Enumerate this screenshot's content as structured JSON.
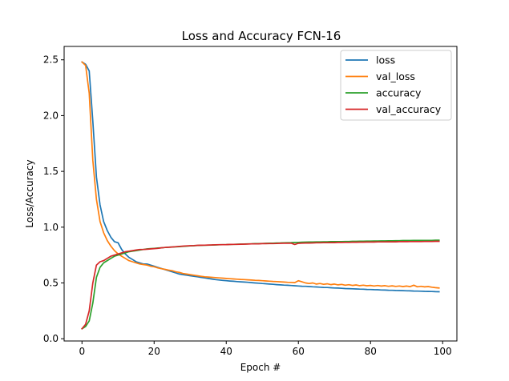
{
  "chart_data": {
    "type": "line",
    "title": "Loss and Accuracy FCN-16",
    "xlabel": "Epoch #",
    "ylabel": "Loss/Accuracy",
    "xlim": [
      -4.95,
      103.95
    ],
    "ylim": [
      -0.02,
      2.62
    ],
    "xticks": [
      0,
      20,
      40,
      60,
      80,
      100
    ],
    "yticks": [
      0.0,
      0.5,
      1.0,
      1.5,
      2.0,
      2.5
    ],
    "xtick_labels": [
      "0",
      "20",
      "40",
      "60",
      "80",
      "100"
    ],
    "ytick_labels": [
      "0.0",
      "0.5",
      "1.0",
      "1.5",
      "2.0",
      "2.5"
    ],
    "grid": false,
    "legend_position": "top-right",
    "x": {
      "start": 0,
      "end": 99,
      "step": 1
    },
    "series": [
      {
        "name": "loss",
        "color": "#1f77b4",
        "values": [
          2.48,
          2.46,
          2.4,
          1.95,
          1.45,
          1.2,
          1.05,
          0.97,
          0.91,
          0.87,
          0.86,
          0.8,
          0.76,
          0.73,
          0.71,
          0.69,
          0.68,
          0.67,
          0.67,
          0.66,
          0.65,
          0.64,
          0.63,
          0.62,
          0.61,
          0.6,
          0.59,
          0.58,
          0.575,
          0.57,
          0.565,
          0.56,
          0.555,
          0.55,
          0.545,
          0.54,
          0.535,
          0.53,
          0.527,
          0.523,
          0.52,
          0.517,
          0.515,
          0.512,
          0.51,
          0.508,
          0.506,
          0.503,
          0.5,
          0.498,
          0.495,
          0.493,
          0.49,
          0.488,
          0.485,
          0.483,
          0.481,
          0.479,
          0.477,
          0.475,
          0.473,
          0.471,
          0.47,
          0.468,
          0.466,
          0.464,
          0.462,
          0.46,
          0.459,
          0.457,
          0.455,
          0.454,
          0.452,
          0.45,
          0.449,
          0.448,
          0.446,
          0.445,
          0.444,
          0.442,
          0.441,
          0.44,
          0.439,
          0.437,
          0.436,
          0.435,
          0.434,
          0.433,
          0.432,
          0.431,
          0.43,
          0.429,
          0.428,
          0.427,
          0.426,
          0.425,
          0.424,
          0.423,
          0.422,
          0.421
        ]
      },
      {
        "name": "val_loss",
        "color": "#ff7f0e",
        "values": [
          2.48,
          2.45,
          2.2,
          1.6,
          1.25,
          1.05,
          0.95,
          0.88,
          0.83,
          0.79,
          0.76,
          0.74,
          0.72,
          0.7,
          0.69,
          0.68,
          0.67,
          0.665,
          0.66,
          0.65,
          0.645,
          0.635,
          0.628,
          0.622,
          0.615,
          0.61,
          0.6,
          0.595,
          0.585,
          0.58,
          0.575,
          0.57,
          0.565,
          0.56,
          0.555,
          0.553,
          0.55,
          0.548,
          0.545,
          0.543,
          0.54,
          0.538,
          0.536,
          0.534,
          0.532,
          0.53,
          0.528,
          0.526,
          0.524,
          0.522,
          0.52,
          0.518,
          0.516,
          0.514,
          0.512,
          0.51,
          0.508,
          0.506,
          0.505,
          0.503,
          0.52,
          0.51,
          0.5,
          0.495,
          0.5,
          0.49,
          0.495,
          0.488,
          0.492,
          0.485,
          0.49,
          0.483,
          0.487,
          0.48,
          0.484,
          0.478,
          0.482,
          0.476,
          0.48,
          0.475,
          0.478,
          0.473,
          0.477,
          0.472,
          0.476,
          0.47,
          0.474,
          0.469,
          0.473,
          0.468,
          0.472,
          0.467,
          0.48,
          0.466,
          0.47,
          0.465,
          0.468,
          0.462,
          0.458,
          0.455
        ]
      },
      {
        "name": "accuracy",
        "color": "#2ca02c",
        "values": [
          0.09,
          0.11,
          0.16,
          0.32,
          0.55,
          0.64,
          0.68,
          0.7,
          0.72,
          0.74,
          0.75,
          0.76,
          0.77,
          0.78,
          0.785,
          0.79,
          0.795,
          0.8,
          0.805,
          0.808,
          0.81,
          0.813,
          0.815,
          0.818,
          0.82,
          0.822,
          0.824,
          0.826,
          0.828,
          0.83,
          0.832,
          0.834,
          0.836,
          0.837,
          0.838,
          0.839,
          0.84,
          0.841,
          0.842,
          0.843,
          0.844,
          0.845,
          0.846,
          0.847,
          0.848,
          0.849,
          0.85,
          0.851,
          0.852,
          0.853,
          0.854,
          0.855,
          0.856,
          0.857,
          0.858,
          0.859,
          0.86,
          0.861,
          0.862,
          0.863,
          0.864,
          0.865,
          0.866,
          0.867,
          0.867,
          0.868,
          0.868,
          0.869,
          0.869,
          0.87,
          0.87,
          0.871,
          0.871,
          0.872,
          0.872,
          0.873,
          0.873,
          0.874,
          0.874,
          0.875,
          0.875,
          0.876,
          0.876,
          0.877,
          0.877,
          0.878,
          0.878,
          0.879,
          0.879,
          0.88,
          0.88,
          0.88,
          0.881,
          0.881,
          0.881,
          0.882,
          0.882,
          0.882,
          0.883,
          0.883
        ]
      },
      {
        "name": "val_accuracy",
        "color": "#d62728",
        "values": [
          0.09,
          0.13,
          0.25,
          0.5,
          0.66,
          0.69,
          0.7,
          0.72,
          0.74,
          0.75,
          0.76,
          0.77,
          0.78,
          0.785,
          0.79,
          0.795,
          0.8,
          0.8,
          0.802,
          0.805,
          0.808,
          0.81,
          0.815,
          0.818,
          0.82,
          0.822,
          0.825,
          0.828,
          0.83,
          0.832,
          0.834,
          0.835,
          0.837,
          0.838,
          0.839,
          0.84,
          0.841,
          0.842,
          0.843,
          0.843,
          0.844,
          0.845,
          0.846,
          0.846,
          0.847,
          0.848,
          0.849,
          0.85,
          0.85,
          0.851,
          0.852,
          0.852,
          0.853,
          0.853,
          0.854,
          0.855,
          0.856,
          0.856,
          0.857,
          0.845,
          0.855,
          0.857,
          0.858,
          0.858,
          0.859,
          0.86,
          0.86,
          0.861,
          0.861,
          0.862,
          0.862,
          0.863,
          0.863,
          0.864,
          0.864,
          0.865,
          0.865,
          0.866,
          0.866,
          0.867,
          0.867,
          0.867,
          0.868,
          0.868,
          0.868,
          0.869,
          0.869,
          0.869,
          0.87,
          0.87,
          0.87,
          0.871,
          0.871,
          0.871,
          0.871,
          0.872,
          0.872,
          0.872,
          0.873,
          0.873
        ]
      }
    ]
  }
}
